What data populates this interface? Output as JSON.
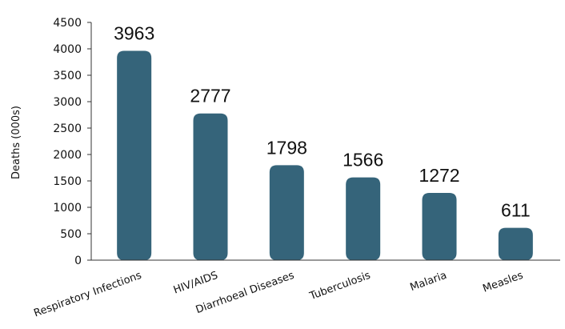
{
  "chart_data": {
    "type": "bar",
    "categories": [
      "Respiratory Infections",
      "HIV/AIDS",
      "Diarrhoeal Diseases",
      "Tuberculosis",
      "Malaria",
      "Measles"
    ],
    "values": [
      3963,
      2777,
      1798,
      1566,
      1272,
      611
    ],
    "ylabel": "Deaths (000s)",
    "ylim": [
      0,
      4500
    ],
    "yticks": [
      0,
      500,
      1000,
      1500,
      2000,
      2500,
      3000,
      3500,
      4000,
      4500
    ],
    "grid": false,
    "colors": {
      "bar": "#35647a",
      "axis": "#333333"
    }
  }
}
